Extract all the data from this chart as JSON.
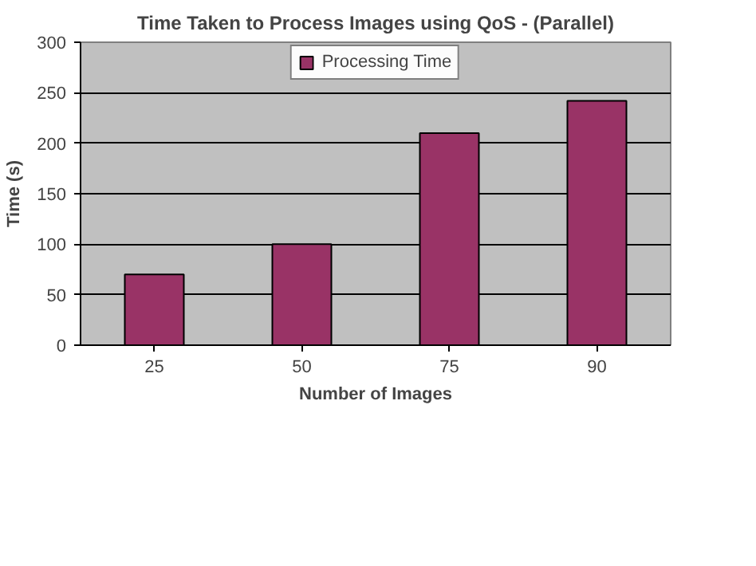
{
  "chart_data": {
    "type": "bar",
    "title": "Time Taken to Process Images using QoS - (Parallel)",
    "xlabel": "Number of Images",
    "ylabel": "Time (s)",
    "categories": [
      "25",
      "50",
      "75",
      "90"
    ],
    "series": [
      {
        "name": "Processing Time",
        "color": "#993366",
        "values": [
          70,
          100,
          210,
          242
        ]
      }
    ],
    "ylim": [
      0,
      300
    ],
    "yticks": [
      0,
      50,
      100,
      150,
      200,
      250,
      300
    ],
    "grid": "y",
    "legend": "top"
  }
}
